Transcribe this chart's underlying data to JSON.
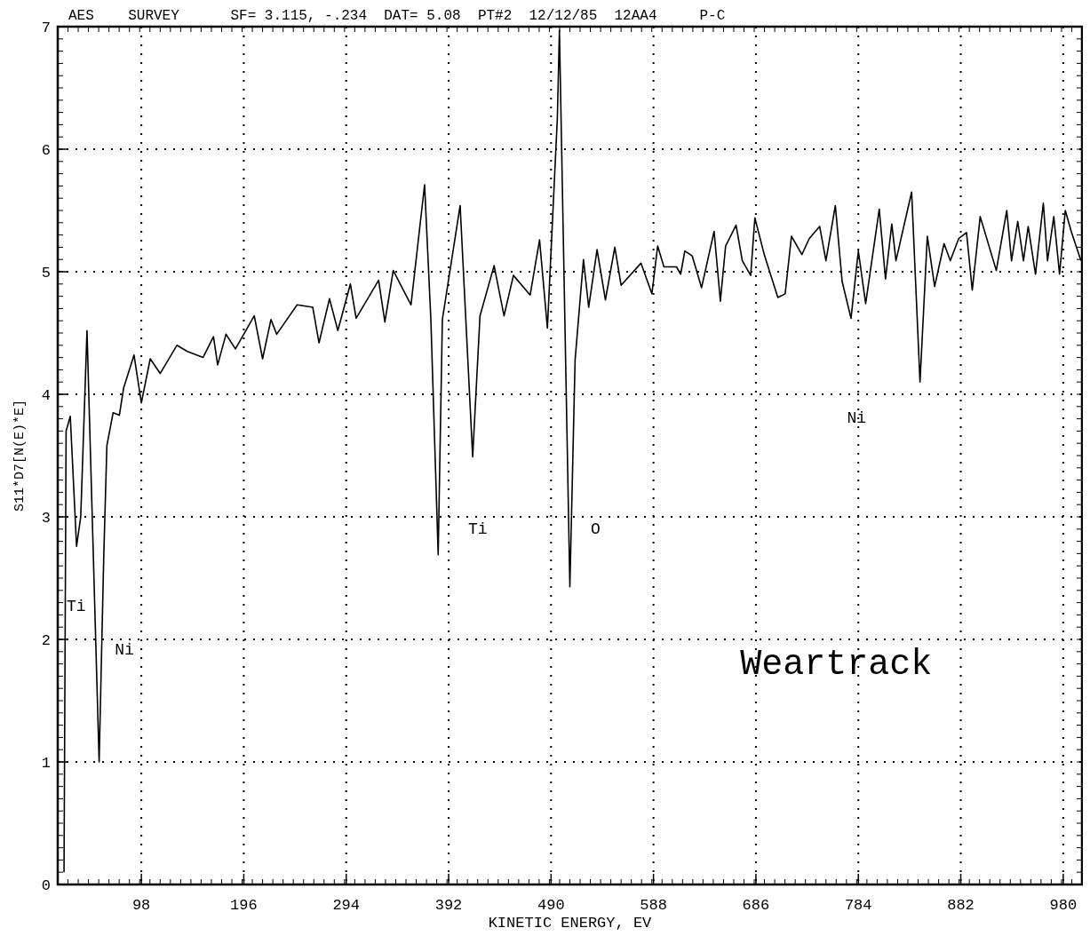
{
  "chart_data": {
    "type": "line",
    "title": "AES    SURVEY      SF= 3.115, -.234  DAT= 5.08  PT#2  12/12/85  12AA4     P-C",
    "xlabel": "KINETIC ENERGY, EV",
    "ylabel": "S11*D7[N(E)*E]",
    "xlim": [
      18,
      998
    ],
    "ylim": [
      0,
      7
    ],
    "xticks": [
      98,
      196,
      294,
      392,
      490,
      588,
      686,
      784,
      882,
      980
    ],
    "yticks": [
      0,
      1,
      2,
      3,
      4,
      5,
      6,
      7
    ],
    "grid": true,
    "marker": "none",
    "line_style": "solid",
    "annotations": [
      "Ti",
      "Ni",
      "Ti",
      "O",
      "Ni",
      "Weartrack"
    ],
    "series": [
      {
        "color": "#000000",
        "x": [
          24,
          26,
          30,
          36,
          40,
          46,
          57.6,
          62,
          65,
          71,
          77,
          81,
          91,
          98,
          106.5,
          116,
          132,
          142,
          157,
          167,
          171,
          179,
          188,
          206,
          214,
          222,
          227.5,
          247,
          262,
          268,
          278,
          286,
          298,
          303.5,
          325,
          331,
          339,
          356,
          369,
          375,
          382,
          386,
          403,
          415,
          422,
          435.5,
          445,
          454,
          470,
          479,
          486.5,
          496,
          498,
          508,
          513,
          521,
          526,
          534,
          542,
          551,
          557,
          576,
          586.5,
          592,
          598,
          610,
          614,
          618,
          625,
          634,
          646,
          652,
          657,
          667,
          673,
          681,
          685,
          694,
          707,
          714,
          720,
          730,
          737,
          747,
          753,
          762,
          768.5,
          777,
          784,
          791,
          804,
          810,
          816,
          820,
          835,
          843,
          850,
          857,
          866,
          872,
          880,
          887.5,
          893,
          900.6,
          916,
          926,
          930.6,
          936.5,
          942,
          946.5,
          953.5,
          961,
          965,
          971,
          976.5,
          982,
          988,
          997
        ],
        "values": [
          0.1,
          3.7,
          3.82,
          2.76,
          3.0,
          4.52,
          1.0,
          2.67,
          3.58,
          3.85,
          3.83,
          4.05,
          4.32,
          3.93,
          4.29,
          4.17,
          4.4,
          4.35,
          4.3,
          4.47,
          4.24,
          4.49,
          4.37,
          4.64,
          4.29,
          4.61,
          4.49,
          4.73,
          4.71,
          4.42,
          4.78,
          4.52,
          4.9,
          4.62,
          4.93,
          4.59,
          5.01,
          4.73,
          5.71,
          4.61,
          2.69,
          4.61,
          5.54,
          3.49,
          4.64,
          5.05,
          4.64,
          4.97,
          4.81,
          5.26,
          4.54,
          6.25,
          6.97,
          2.43,
          4.28,
          5.1,
          4.71,
          5.18,
          4.77,
          5.2,
          4.89,
          5.07,
          4.82,
          5.21,
          5.04,
          5.04,
          4.98,
          5.17,
          5.13,
          4.87,
          5.33,
          4.76,
          5.21,
          5.38,
          5.09,
          4.97,
          5.44,
          5.14,
          4.79,
          4.82,
          5.29,
          5.14,
          5.27,
          5.37,
          5.09,
          5.54,
          4.92,
          4.62,
          5.17,
          4.74,
          5.51,
          4.94,
          5.39,
          5.09,
          5.65,
          4.1,
          5.29,
          4.88,
          5.23,
          5.09,
          5.27,
          5.32,
          4.85,
          5.45,
          5.01,
          5.5,
          5.09,
          5.41,
          5.09,
          5.37,
          4.98,
          5.56,
          5.09,
          5.45,
          4.98,
          5.5,
          5.32,
          5.09
        ]
      }
    ]
  }
}
